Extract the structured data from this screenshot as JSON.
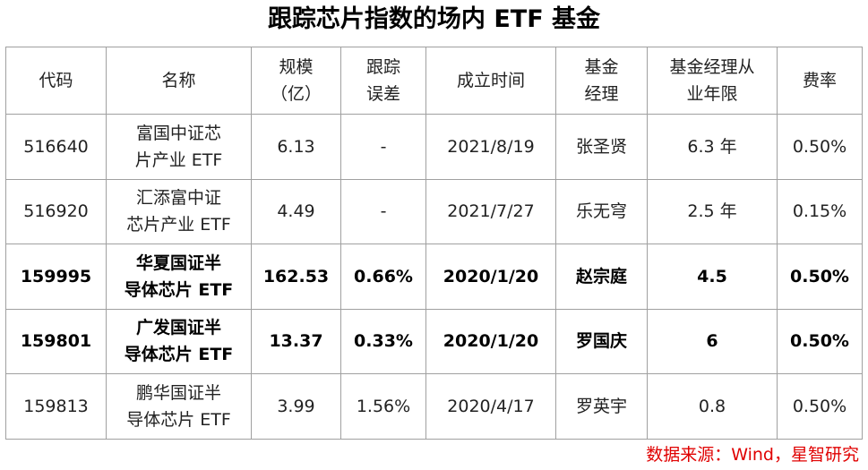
{
  "title": "跟踪芯片指数的场内 ETF 基金",
  "table": {
    "headers": [
      [
        "代码"
      ],
      [
        "名称"
      ],
      [
        "规模",
        "（亿）"
      ],
      [
        "跟踪",
        "误差"
      ],
      [
        "成立时间"
      ],
      [
        "基金",
        "经理"
      ],
      [
        "基金经理从",
        "业年限"
      ],
      [
        "费率"
      ]
    ],
    "rows": [
      [
        "516640",
        [
          "富国中证芯",
          "片产业 ETF"
        ],
        "6.13",
        "-",
        "2021/8/19",
        "张圣贤",
        "6.3 年",
        "0.50%"
      ],
      [
        "516920",
        [
          "汇添富中证",
          "芯片产业 ETF"
        ],
        "4.49",
        "-",
        "2021/7/27",
        "乐无穹",
        "2.5 年",
        "0.15%"
      ],
      [
        "159995",
        [
          "华夏国证半",
          "导体芯片 ETF"
        ],
        "162.53",
        "0.66%",
        "2020/1/20",
        "赵宗庭",
        "4.5",
        "0.50%"
      ],
      [
        "159801",
        [
          "广发国证半",
          "导体芯片 ETF"
        ],
        "13.37",
        "0.33%",
        "2020/1/20",
        "罗国庆",
        "6",
        "0.50%"
      ],
      [
        "159813",
        [
          "鹏华国证半",
          "导体芯片 ETF"
        ],
        "3.99",
        "1.56%",
        "2020/4/17",
        "罗英宇",
        "0.8",
        "0.50%"
      ]
    ]
  },
  "source": "数据来源：Wind，星智研究"
}
